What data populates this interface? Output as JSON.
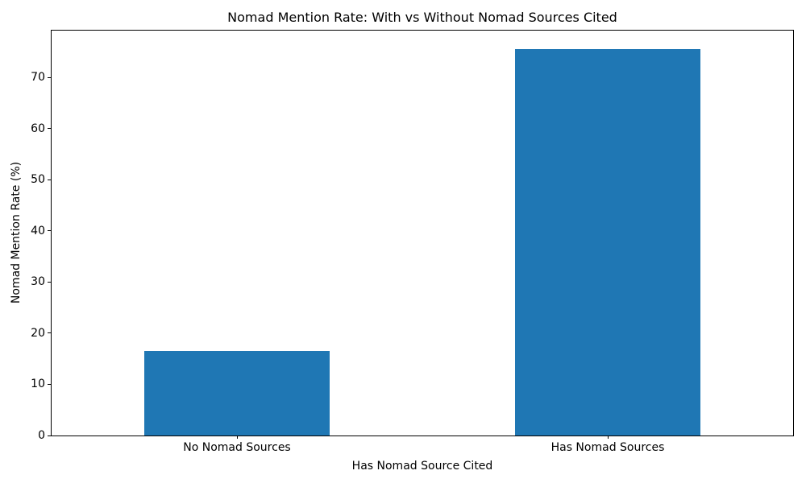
{
  "chart_data": {
    "type": "bar",
    "title": "Nomad Mention Rate: With vs Without Nomad Sources Cited",
    "categories": [
      "No Nomad Sources",
      "Has Nomad Sources"
    ],
    "values": [
      16.5,
      75.6
    ],
    "xlabel": "Has Nomad Source Cited",
    "ylabel": "Nomad Mention Rate (%)",
    "ylim": [
      0,
      79.2
    ],
    "yticks": [
      0,
      10,
      20,
      30,
      40,
      50,
      60,
      70
    ],
    "bar_color": "#1f77b4",
    "background_color": "#ffffff",
    "grid": false,
    "legend_position": "none",
    "bar_width_fraction": 0.5
  }
}
